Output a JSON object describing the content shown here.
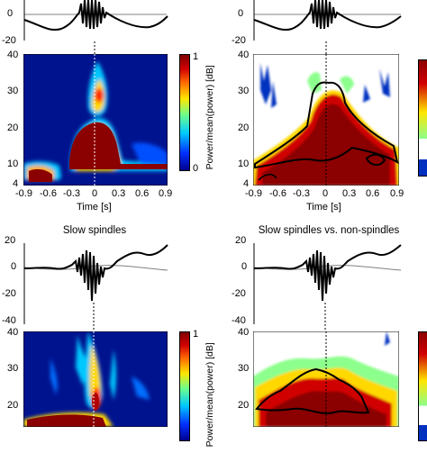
{
  "panels": {
    "top_left": {
      "trace_y_ticks": [
        "0",
        "-20"
      ],
      "tf_y_ticks": [
        "40",
        "30",
        "20",
        "10",
        "4"
      ],
      "x_ticks": [
        "-0.9",
        "-0.6",
        "-0.3",
        "0",
        "0.3",
        "0.6",
        "0.9"
      ],
      "xlabel": "Time [s]",
      "colorbar_ticks": [
        "1",
        "0"
      ],
      "colorbar_label": "Power/mean(power) [dB]"
    },
    "top_right": {
      "trace_y_ticks": [
        "0",
        "-20"
      ],
      "tf_y_ticks": [
        "40",
        "30",
        "20",
        "10",
        "4"
      ],
      "x_ticks": [
        "-0.9",
        "-0.6",
        "-0.3",
        "0",
        "0.3",
        "0.6",
        "0.9"
      ],
      "xlabel": "Time [s]"
    },
    "bottom_left": {
      "title": "Slow spindles",
      "trace_y_ticks": [
        "20",
        "0",
        "-20",
        "-40"
      ],
      "tf_y_ticks": [
        "40",
        "30",
        "20"
      ],
      "colorbar_ticks": [
        "1"
      ],
      "colorbar_label": "Power/mean(power) [dB]"
    },
    "bottom_right": {
      "title": "Slow spindles vs. non-spindles",
      "trace_y_ticks": [
        "20",
        "0",
        "-20",
        "-40"
      ],
      "tf_y_ticks": [
        "40",
        "30",
        "20"
      ]
    }
  },
  "colors": {
    "colormap": [
      "#00008f",
      "#0030ff",
      "#00c8ff",
      "#6cff8c",
      "#ffe600",
      "#ff6a00",
      "#d10000",
      "#800000"
    ],
    "trace": "#000000",
    "mean_trace": "#808080"
  }
}
